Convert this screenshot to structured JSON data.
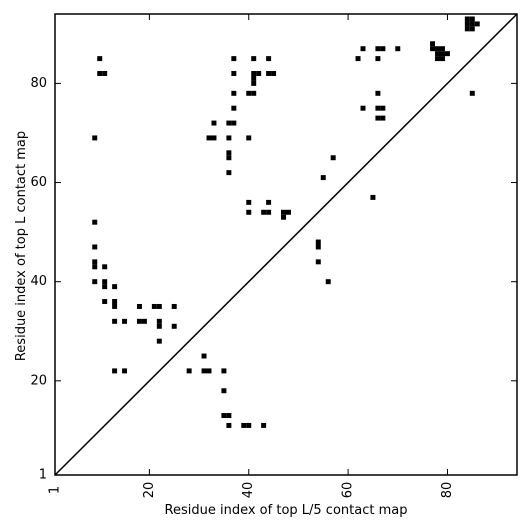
{
  "chart_data": {
    "type": "scatter",
    "xlabel": "Residue index of top L/5 contact map",
    "ylabel": "Residue index of top L contact map",
    "xlim": [
      1,
      94
    ],
    "ylim": [
      1,
      94
    ],
    "x_ticks": [
      1,
      20,
      40,
      60,
      80
    ],
    "y_ticks": [
      1,
      20,
      40,
      60,
      80
    ],
    "x_tick_labels": [
      "1",
      "20",
      "40",
      "60",
      "80"
    ],
    "y_tick_labels": [
      "1",
      "20",
      "40",
      "60",
      "80"
    ],
    "diagonal": true,
    "grid": false,
    "marker_color": "#000000",
    "upper_triangle_points": [
      [
        10,
        85
      ],
      [
        10,
        82
      ],
      [
        11,
        82
      ],
      [
        9,
        69
      ],
      [
        33,
        72
      ],
      [
        32,
        69
      ],
      [
        33,
        69
      ],
      [
        36,
        72
      ],
      [
        37,
        72
      ],
      [
        36,
        69
      ],
      [
        36,
        66
      ],
      [
        36,
        65
      ],
      [
        36,
        62
      ],
      [
        37,
        85
      ],
      [
        37,
        82
      ],
      [
        37,
        78
      ],
      [
        37,
        75
      ],
      [
        40,
        78
      ],
      [
        41,
        78
      ],
      [
        41,
        80
      ],
      [
        41,
        81
      ],
      [
        41,
        82
      ],
      [
        42,
        82
      ],
      [
        40,
        69
      ],
      [
        41,
        85
      ],
      [
        44,
        85
      ],
      [
        44,
        82
      ],
      [
        45,
        82
      ],
      [
        40,
        56
      ],
      [
        40,
        54
      ],
      [
        43,
        54
      ],
      [
        44,
        54
      ],
      [
        44,
        56
      ],
      [
        47,
        54
      ],
      [
        47,
        53
      ],
      [
        48,
        54
      ],
      [
        54,
        48
      ],
      [
        54,
        47
      ],
      [
        54,
        44
      ],
      [
        55,
        61
      ],
      [
        56,
        40
      ],
      [
        57,
        65
      ],
      [
        62,
        85
      ],
      [
        63,
        87
      ],
      [
        63,
        75
      ],
      [
        65,
        57
      ],
      [
        66,
        87
      ],
      [
        67,
        87
      ],
      [
        66,
        85
      ],
      [
        66,
        78
      ],
      [
        66,
        75
      ],
      [
        67,
        75
      ],
      [
        66,
        73
      ],
      [
        67,
        73
      ],
      [
        70,
        87
      ],
      [
        77,
        88
      ],
      [
        77,
        87
      ],
      [
        78,
        87
      ],
      [
        78,
        86
      ],
      [
        78,
        85
      ],
      [
        79,
        85
      ],
      [
        79,
        86
      ],
      [
        79,
        87
      ],
      [
        80,
        86
      ],
      [
        84,
        93
      ],
      [
        85,
        93
      ],
      [
        84,
        92
      ],
      [
        85,
        92
      ],
      [
        84,
        91
      ],
      [
        85,
        91
      ],
      [
        86,
        92
      ],
      [
        85,
        78
      ]
    ],
    "lower_triangle_points": [
      [
        9,
        52
      ],
      [
        9,
        47
      ],
      [
        9,
        44
      ],
      [
        9,
        43
      ],
      [
        9,
        40
      ],
      [
        11,
        43
      ],
      [
        11,
        40
      ],
      [
        11,
        39
      ],
      [
        11,
        36
      ],
      [
        13,
        39
      ],
      [
        13,
        36
      ],
      [
        13,
        35
      ],
      [
        13,
        32
      ],
      [
        15,
        32
      ],
      [
        13,
        22
      ],
      [
        15,
        22
      ],
      [
        18,
        35
      ],
      [
        18,
        32
      ],
      [
        19,
        32
      ],
      [
        21,
        35
      ],
      [
        22,
        35
      ],
      [
        22,
        32
      ],
      [
        22,
        31
      ],
      [
        25,
        35
      ],
      [
        25,
        31
      ],
      [
        22,
        28
      ],
      [
        28,
        22
      ],
      [
        31,
        25
      ],
      [
        31,
        22
      ],
      [
        32,
        22
      ],
      [
        35,
        22
      ],
      [
        35,
        18
      ],
      [
        35,
        13
      ],
      [
        36,
        13
      ],
      [
        36,
        11
      ],
      [
        39,
        11
      ],
      [
        40,
        11
      ],
      [
        43,
        11
      ]
    ]
  }
}
